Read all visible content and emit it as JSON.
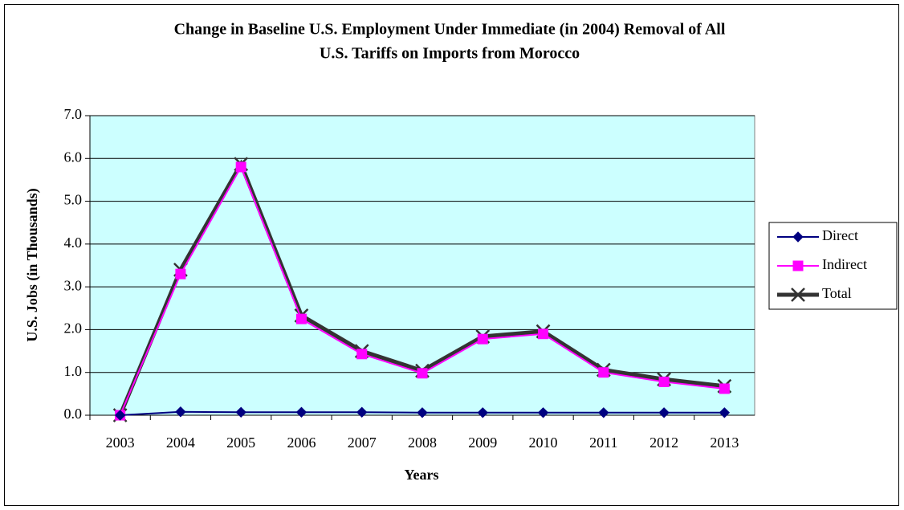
{
  "chart_data": {
    "type": "line",
    "title": [
      "Change in Baseline U.S. Employment Under Immediate (in 2004) Removal of All",
      "U.S. Tariffs on Imports from Morocco"
    ],
    "x_label": "Years",
    "y_label": "U.S. Jobs (in Thousands)",
    "categories": [
      "2003",
      "2004",
      "2005",
      "2006",
      "2007",
      "2008",
      "2009",
      "2010",
      "2011",
      "2012",
      "2013"
    ],
    "series": [
      {
        "name": "Direct",
        "color": "#000080",
        "marker": "diamond",
        "values": [
          0,
          0.08,
          0.07,
          0.07,
          0.07,
          0.06,
          0.06,
          0.06,
          0.06,
          0.06,
          0.06
        ]
      },
      {
        "name": "Indirect",
        "color": "#ff00ff",
        "marker": "square",
        "values": [
          0,
          3.3,
          5.8,
          2.25,
          1.43,
          0.98,
          1.78,
          1.9,
          1.0,
          0.78,
          0.62
        ]
      },
      {
        "name": "Total",
        "color": "#333333",
        "marker": "x",
        "values": [
          0,
          3.4,
          5.87,
          2.33,
          1.5,
          1.04,
          1.84,
          1.96,
          1.06,
          0.84,
          0.68
        ]
      }
    ],
    "ylim": [
      0,
      7
    ],
    "yticks": [
      {
        "value": 0,
        "label": "0.0"
      },
      {
        "value": 1,
        "label": "1.0"
      },
      {
        "value": 2,
        "label": "2.0"
      },
      {
        "value": 3,
        "label": "3.0"
      },
      {
        "value": 4,
        "label": "4.0"
      },
      {
        "value": 5,
        "label": "5.0"
      },
      {
        "value": 6,
        "label": "6.0"
      },
      {
        "value": 7,
        "label": "7.0"
      }
    ],
    "grid": true,
    "plot_background": "#ccffff",
    "legend": "right"
  }
}
